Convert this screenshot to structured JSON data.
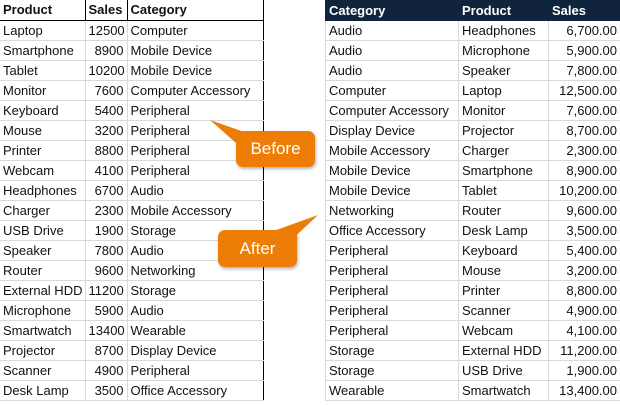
{
  "before": {
    "headers": [
      "Product",
      "Sales",
      "Category"
    ],
    "rows": [
      [
        "Laptop",
        "12500",
        "Computer"
      ],
      [
        "Smartphone",
        "8900",
        "Mobile Device"
      ],
      [
        "Tablet",
        "10200",
        "Mobile Device"
      ],
      [
        "Monitor",
        "7600",
        "Computer Accessory"
      ],
      [
        "Keyboard",
        "5400",
        "Peripheral"
      ],
      [
        "Mouse",
        "3200",
        "Peripheral"
      ],
      [
        "Printer",
        "8800",
        "Peripheral"
      ],
      [
        "Webcam",
        "4100",
        "Peripheral"
      ],
      [
        "Headphones",
        "6700",
        "Audio"
      ],
      [
        "Charger",
        "2300",
        "Mobile Accessory"
      ],
      [
        "USB Drive",
        "1900",
        "Storage"
      ],
      [
        "Speaker",
        "7800",
        "Audio"
      ],
      [
        "Router",
        "9600",
        "Networking"
      ],
      [
        "External HDD",
        "11200",
        "Storage"
      ],
      [
        "Microphone",
        "5900",
        "Audio"
      ],
      [
        "Smartwatch",
        "13400",
        "Wearable"
      ],
      [
        "Projector",
        "8700",
        "Display Device"
      ],
      [
        "Scanner",
        "4900",
        "Peripheral"
      ],
      [
        "Desk Lamp",
        "3500",
        "Office Accessory"
      ]
    ]
  },
  "after": {
    "headers": [
      "Category",
      "Product",
      "Sales"
    ],
    "header_color": "#10243e",
    "rows": [
      [
        "Audio",
        "Headphones",
        "6,700.00"
      ],
      [
        "Audio",
        "Microphone",
        "5,900.00"
      ],
      [
        "Audio",
        "Speaker",
        "7,800.00"
      ],
      [
        "Computer",
        "Laptop",
        "12,500.00"
      ],
      [
        "Computer Accessory",
        "Monitor",
        "7,600.00"
      ],
      [
        "Display Device",
        "Projector",
        "8,700.00"
      ],
      [
        "Mobile Accessory",
        "Charger",
        "2,300.00"
      ],
      [
        "Mobile Device",
        "Smartphone",
        "8,900.00"
      ],
      [
        "Mobile Device",
        "Tablet",
        "10,200.00"
      ],
      [
        "Networking",
        "Router",
        "9,600.00"
      ],
      [
        "Office Accessory",
        "Desk Lamp",
        "3,500.00"
      ],
      [
        "Peripheral",
        "Keyboard",
        "5,400.00"
      ],
      [
        "Peripheral",
        "Mouse",
        "3,200.00"
      ],
      [
        "Peripheral",
        "Printer",
        "8,800.00"
      ],
      [
        "Peripheral",
        "Scanner",
        "4,900.00"
      ],
      [
        "Peripheral",
        "Webcam",
        "4,100.00"
      ],
      [
        "Storage",
        "External HDD",
        "11,200.00"
      ],
      [
        "Storage",
        "USB Drive",
        "1,900.00"
      ],
      [
        "Wearable",
        "Smartwatch",
        "13,400.00"
      ]
    ]
  },
  "callouts": {
    "before": "Before",
    "after": "After",
    "color": "#ee7d07"
  }
}
